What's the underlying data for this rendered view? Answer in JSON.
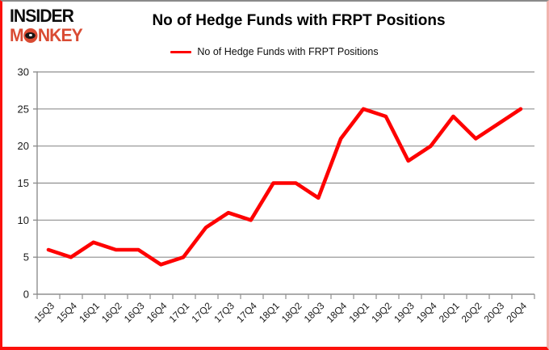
{
  "logo": {
    "line1": "INSIDER",
    "line2_prefix": "M",
    "line2_suffix": "NKEY",
    "brand_red": "#d94b33"
  },
  "title": "No of Hedge Funds with FRPT Positions",
  "legend": {
    "label": "No of Hedge Funds with FRPT Positions",
    "line_color": "#fe0000"
  },
  "chart_data": {
    "type": "line",
    "title": "No of Hedge Funds with FRPT Positions",
    "categories": [
      "15Q3",
      "15Q4",
      "16Q1",
      "16Q2",
      "16Q3",
      "16Q4",
      "17Q1",
      "17Q2",
      "17Q3",
      "17Q4",
      "18Q1",
      "18Q2",
      "18Q3",
      "18Q4",
      "19Q1",
      "19Q2",
      "19Q3",
      "19Q4",
      "20Q1",
      "20Q2",
      "20Q3",
      "20Q4"
    ],
    "series": [
      {
        "name": "No of Hedge Funds with FRPT Positions",
        "color": "#fe0000",
        "values": [
          6,
          5,
          7,
          6,
          6,
          4,
          5,
          9,
          11,
          10,
          15,
          15,
          13,
          21,
          25,
          24,
          18,
          20,
          24,
          21,
          23,
          25
        ]
      }
    ],
    "xlabel": "",
    "ylabel": "",
    "ylim": [
      0,
      30
    ],
    "yticks": [
      0,
      5,
      10,
      15,
      20,
      25,
      30
    ],
    "grid": true,
    "gridline_color": "#8f8f8f",
    "axis_color": "#8f8f8f",
    "legend_position": "top-center"
  }
}
